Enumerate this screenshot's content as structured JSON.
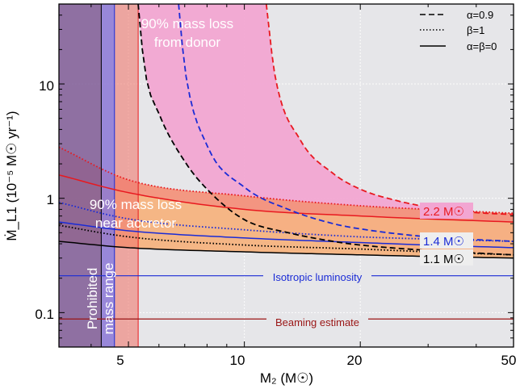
{
  "chart_data": {
    "type": "line",
    "xlabel": "M₂ (M☉)",
    "ylabel": "Ṁ_L1 (10⁻⁵ M☉ yr⁻¹)",
    "xscale": "log",
    "yscale": "log",
    "xlim": [
      3.3,
      50
    ],
    "ylim": [
      0.05,
      50
    ],
    "xticks": [
      {
        "value": 5,
        "label": "5"
      },
      {
        "value": 10,
        "label": "10"
      },
      {
        "value": 20,
        "label": "20"
      },
      {
        "value": 50,
        "label": "50"
      }
    ],
    "yticks": [
      {
        "value": 0.1,
        "label": "0.1"
      },
      {
        "value": 1,
        "label": "1"
      },
      {
        "value": 10,
        "label": "10"
      }
    ],
    "legend": {
      "position": "top-right",
      "entries": [
        {
          "label": "α=0.9",
          "style": "dashed"
        },
        {
          "label": "β=1",
          "style": "dotted"
        },
        {
          "label": "α=β=0",
          "style": "solid"
        }
      ]
    },
    "series": [
      {
        "name": "2.2 M☉",
        "color": "#e8191f",
        "dashed": {
          "asymptote": 11.1,
          "x": [
            11.4,
            12,
            14,
            17,
            20,
            25,
            30,
            40,
            50
          ],
          "y": [
            50,
            12,
            3.2,
            1.65,
            1.2,
            0.95,
            0.84,
            0.75,
            0.72
          ]
        },
        "dotted": {
          "x": [
            3.3,
            5,
            10,
            20,
            30,
            50
          ],
          "y": [
            2.8,
            1.45,
            1.05,
            0.86,
            0.8,
            0.74
          ]
        },
        "solid": {
          "x": [
            3.3,
            5,
            10,
            20,
            30,
            50
          ],
          "y": [
            1.6,
            1.12,
            0.8,
            0.7,
            0.66,
            0.62
          ]
        }
      },
      {
        "name": "1.4 M☉",
        "color": "#1a2bd6",
        "dashed": {
          "asymptote": 6.6,
          "x": [
            6.75,
            7,
            8,
            10,
            13,
            17,
            20,
            30,
            50
          ],
          "y": [
            50,
            14,
            2.9,
            1.25,
            0.8,
            0.6,
            0.54,
            0.46,
            0.42
          ]
        },
        "dotted": {
          "x": [
            3.3,
            5,
            10,
            20,
            30,
            50
          ],
          "y": [
            0.92,
            0.66,
            0.53,
            0.46,
            0.44,
            0.42
          ]
        },
        "solid": {
          "x": [
            3.3,
            5,
            10,
            20,
            30,
            50
          ],
          "y": [
            0.62,
            0.52,
            0.45,
            0.41,
            0.39,
            0.37
          ]
        }
      },
      {
        "name": "1.1 M☉",
        "color": "#000000",
        "dashed": {
          "asymptote": 5.2,
          "x": [
            5.3,
            5.5,
            6,
            7,
            8,
            10,
            13,
            17,
            20,
            30,
            50
          ],
          "y": [
            50,
            14,
            5.5,
            2.1,
            1.2,
            0.65,
            0.5,
            0.42,
            0.39,
            0.35,
            0.32
          ]
        },
        "dotted": {
          "x": [
            3.3,
            5,
            10,
            20,
            30,
            50
          ],
          "y": [
            0.58,
            0.46,
            0.39,
            0.36,
            0.34,
            0.32
          ]
        },
        "solid": {
          "x": [
            3.3,
            5,
            10,
            20,
            30,
            50
          ],
          "y": [
            0.42,
            0.37,
            0.34,
            0.32,
            0.31,
            0.3
          ]
        }
      }
    ],
    "reference_lines": [
      {
        "label": "Isotropic luminosity",
        "y": 0.21,
        "color": "#1a2bd6"
      },
      {
        "label": "Beaming estimate",
        "y": 0.088,
        "color": "#9a1515"
      }
    ],
    "regions": [
      {
        "label": "90% mass loss from donor",
        "color": "#f2a6d2"
      },
      {
        "label": "90% mass loss near accretor",
        "color": "#f6b07a"
      },
      {
        "label": "Prohibited mass range",
        "color": "#7f5b95",
        "x_edges": [
          4.25,
          4.6,
          5.3
        ]
      }
    ],
    "grid": true
  },
  "text": {
    "region_donor_1": "90% mass loss",
    "region_donor_2": "from donor",
    "region_accretor_1": "90% mass loss",
    "region_accretor_2": "near accretor",
    "region_prohibited_1": "Prohibited",
    "region_prohibited_2": "mass range",
    "mass_22": "2.2 M☉",
    "mass_14": "1.4 M☉",
    "mass_11": "1.1 M☉",
    "isotropic": "Isotropic luminosity",
    "beaming": "Beaming estimate",
    "legend_dashed": "α=0.9",
    "legend_dotted": "β=1",
    "legend_solid": "α=β=0",
    "xlabel": "M₂ (M☉)",
    "ylabel": "Ṁ_L1 (10⁻⁵ M☉ yr⁻¹)",
    "xtick_5": "5",
    "xtick_10": "10",
    "xtick_20": "20",
    "xtick_50": "50",
    "ytick_01": "0.1",
    "ytick_1": "1",
    "ytick_10": "10"
  }
}
